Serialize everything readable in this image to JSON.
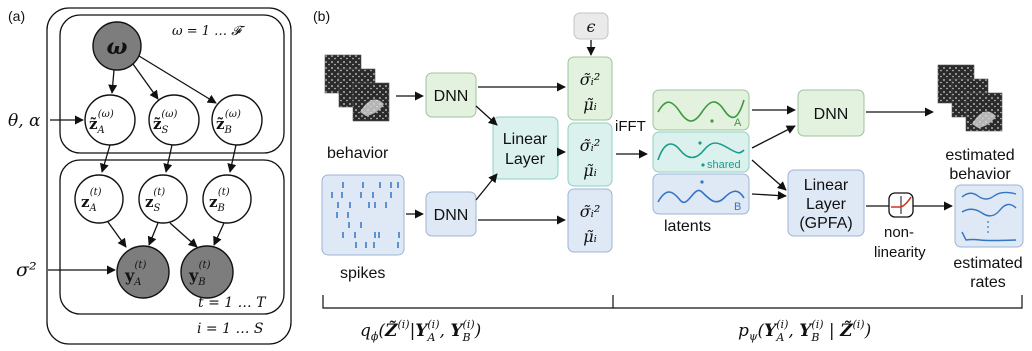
{
  "panels": {
    "a": {
      "label": "(a)"
    },
    "b": {
      "label": "(b)"
    }
  },
  "graphical_model": {
    "omega_node": "ω",
    "plate_outer_label": "ω = 1 … 𝓕",
    "z_omega_nodes": [
      "z̃A(ω)",
      "z̃S(ω)",
      "z̃B(ω)"
    ],
    "theta_alpha": "θ, α",
    "z_t_nodes": [
      "zA(t)",
      "zS(t)",
      "zB(t)"
    ],
    "y_nodes": [
      "yA(t)",
      "yB(t)"
    ],
    "sigma2": "σ²",
    "plate_t_label": "t = 1 … T",
    "plate_i_label": "i = 1 … S"
  },
  "architecture": {
    "input_behavior_label": "behavior",
    "input_spikes_label": "spikes",
    "dnn_label": "DNN",
    "linear_layer_line1": "Linear",
    "linear_layer_line2": "Layer",
    "epsilon": "ϵ",
    "sigma_sq_label": "σ̃ᵢ²",
    "mu_label": "μ̃ᵢ",
    "ifft_label": "iFFT",
    "latent_labels": [
      "A",
      "shared",
      "B"
    ],
    "latents_caption": "latents",
    "gpfa_line1": "Linear",
    "gpfa_line2": "Layer",
    "gpfa_line3": "(GPFA)",
    "nonlinearity_line1": "non-",
    "nonlinearity_line2": "linearity",
    "estimated_behavior_line1": "estimated",
    "estimated_behavior_line2": "behavior",
    "estimated_rates_line1": "estimated",
    "estimated_rates_line2": "rates",
    "encoder_formula": "qϕ(Z̃(i) | YA(i), YB(i))",
    "decoder_formula": "pψ(YA(i), YB(i) | Z̃(i))"
  },
  "colors": {
    "green_fill": "#e3f1df",
    "blue_fill": "#dfe8f5",
    "teal_fill": "#dbf1ee",
    "gray_fill": "#eaeaea",
    "dark_node": "#7d7d7d",
    "green_line": "#3d9a3d",
    "teal_line": "#1a9c8a",
    "blue_line": "#3474c4",
    "red_curve": "#d03020"
  }
}
